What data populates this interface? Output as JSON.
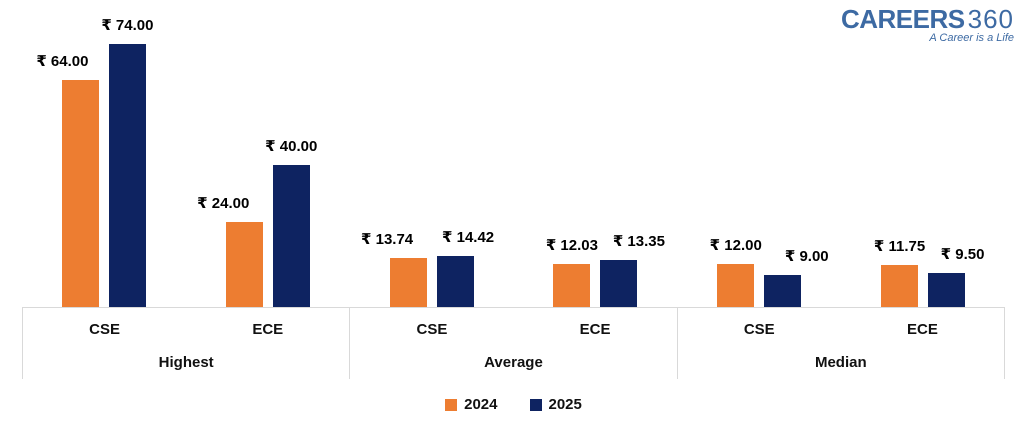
{
  "logo": {
    "brand_bold": "CAREERS",
    "brand_light": "360",
    "tagline": "A Career is a Life",
    "color": "#3d6aa3"
  },
  "chart_data": {
    "type": "bar",
    "currency": "₹",
    "title": "",
    "xlabel": "",
    "ylabel": "",
    "ylim": [
      0,
      80
    ],
    "grid": false,
    "value_axis_visible": false,
    "legend_position": "bottom",
    "series": [
      {
        "name": "2024",
        "color": "#ED7D31"
      },
      {
        "name": "2025",
        "color": "#0e2361"
      }
    ],
    "groups": [
      {
        "label": "Highest",
        "clusters": [
          {
            "label": "CSE",
            "points": [
              {
                "value": 64.0,
                "label": "₹ 64.00"
              },
              {
                "value": 74.0,
                "label": "₹ 74.00"
              }
            ]
          },
          {
            "label": "ECE",
            "points": [
              {
                "value": 24.0,
                "label": "₹ 24.00"
              },
              {
                "value": 40.0,
                "label": "₹ 40.00"
              }
            ]
          }
        ]
      },
      {
        "label": "Average",
        "clusters": [
          {
            "label": "CSE",
            "points": [
              {
                "value": 13.74,
                "label": "₹ 13.74"
              },
              {
                "value": 14.42,
                "label": "₹ 14.42"
              }
            ]
          },
          {
            "label": "ECE",
            "points": [
              {
                "value": 12.03,
                "label": "₹ 12.03"
              },
              {
                "value": 13.35,
                "label": "₹ 13.35"
              }
            ]
          }
        ]
      },
      {
        "label": "Median",
        "clusters": [
          {
            "label": "CSE",
            "points": [
              {
                "value": 12.0,
                "label": "₹ 12.00"
              },
              {
                "value": 9.0,
                "label": "₹ 9.00"
              }
            ]
          },
          {
            "label": "ECE",
            "points": [
              {
                "value": 11.75,
                "label": "₹ 11.75"
              },
              {
                "value": 9.5,
                "label": "₹ 9.50"
              }
            ]
          }
        ]
      }
    ]
  }
}
